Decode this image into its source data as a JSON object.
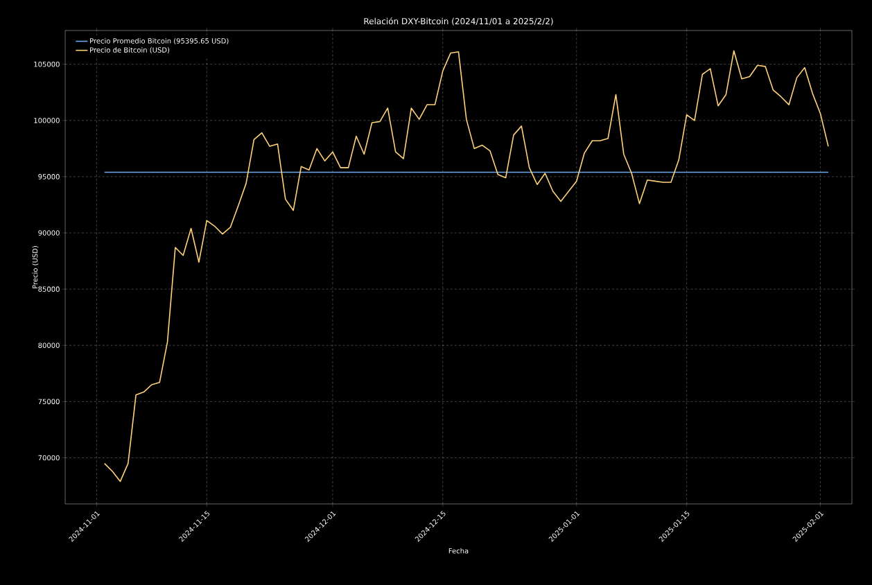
{
  "chart_data": {
    "type": "line",
    "title": "Relación DXY-Bitcoin (2024/11/01 a 2025/2/2)",
    "xlabel": "Fecha",
    "ylabel": "Precio (USD)",
    "x": [
      "2024-11-02",
      "2024-11-03",
      "2024-11-04",
      "2024-11-05",
      "2024-11-06",
      "2024-11-07",
      "2024-11-08",
      "2024-11-09",
      "2024-11-10",
      "2024-11-11",
      "2024-11-12",
      "2024-11-13",
      "2024-11-14",
      "2024-11-15",
      "2024-11-16",
      "2024-11-17",
      "2024-11-18",
      "2024-11-19",
      "2024-11-20",
      "2024-11-21",
      "2024-11-22",
      "2024-11-23",
      "2024-11-24",
      "2024-11-25",
      "2024-11-26",
      "2024-11-27",
      "2024-11-28",
      "2024-11-29",
      "2024-11-30",
      "2024-12-01",
      "2024-12-02",
      "2024-12-03",
      "2024-12-04",
      "2024-12-05",
      "2024-12-06",
      "2024-12-07",
      "2024-12-08",
      "2024-12-09",
      "2024-12-10",
      "2024-12-11",
      "2024-12-12",
      "2024-12-13",
      "2024-12-14",
      "2024-12-15",
      "2024-12-16",
      "2024-12-17",
      "2024-12-18",
      "2024-12-19",
      "2024-12-20",
      "2024-12-21",
      "2024-12-22",
      "2024-12-23",
      "2024-12-24",
      "2024-12-25",
      "2024-12-26",
      "2024-12-27",
      "2024-12-28",
      "2024-12-29",
      "2024-12-30",
      "2024-12-31",
      "2025-01-01",
      "2025-01-02",
      "2025-01-03",
      "2025-01-04",
      "2025-01-05",
      "2025-01-06",
      "2025-01-07",
      "2025-01-08",
      "2025-01-09",
      "2025-01-10",
      "2025-01-11",
      "2025-01-12",
      "2025-01-13",
      "2025-01-14",
      "2025-01-15",
      "2025-01-16",
      "2025-01-17",
      "2025-01-18",
      "2025-01-19",
      "2025-01-20",
      "2025-01-21",
      "2025-01-22",
      "2025-01-23",
      "2025-01-24",
      "2025-01-25",
      "2025-01-26",
      "2025-01-27",
      "2025-01-28",
      "2025-01-29",
      "2025-01-30",
      "2025-01-31",
      "2025-02-01",
      "2025-02-02"
    ],
    "series": [
      {
        "name": "Precio Promedio Bitcoin (95395.65 USD)",
        "color": "#6fa8ea",
        "x": [
          "2024-11-02",
          "2025-02-02"
        ],
        "values": [
          95395.65,
          95395.65
        ]
      },
      {
        "name": "Precio de Bitcoin (USD)",
        "color": "#ffd27a",
        "values": [
          69500,
          68800,
          67900,
          69500,
          75600,
          75850,
          76500,
          76700,
          80300,
          88700,
          88000,
          90400,
          87400,
          91100,
          90600,
          89900,
          90500,
          92400,
          94400,
          98300,
          98900,
          97700,
          97900,
          93000,
          92000,
          95900,
          95600,
          97500,
          96400,
          97200,
          95800,
          95800,
          98600,
          97000,
          99800,
          99900,
          101100,
          97200,
          96600,
          101100,
          100100,
          101400,
          101400,
          104400,
          106000,
          106100,
          100100,
          97500,
          97800,
          97300,
          95200,
          94900,
          98700,
          99500,
          95800,
          94300,
          95300,
          93700,
          92800,
          93700,
          94600,
          97100,
          98200,
          98200,
          98400,
          102300,
          97000,
          95300,
          92600,
          94700,
          94600,
          94500,
          94500,
          96500,
          100500,
          100000,
          104100,
          104600,
          101300,
          102300,
          106200,
          103700,
          103900,
          104900,
          104800,
          102700,
          102100,
          101400,
          103800,
          104700,
          102400,
          100600,
          97700
        ]
      }
    ],
    "xlim": [
      "2024-10-28",
      "2025-02-05"
    ],
    "ylim": [
      65900,
      108000
    ],
    "xticks": [
      "2024-11-01",
      "2024-11-15",
      "2024-12-01",
      "2024-12-15",
      "2025-01-01",
      "2025-01-15",
      "2025-02-01"
    ],
    "yticks": [
      70000,
      75000,
      80000,
      85000,
      90000,
      95000,
      100000,
      105000
    ],
    "grid": true,
    "legend": "top left"
  }
}
